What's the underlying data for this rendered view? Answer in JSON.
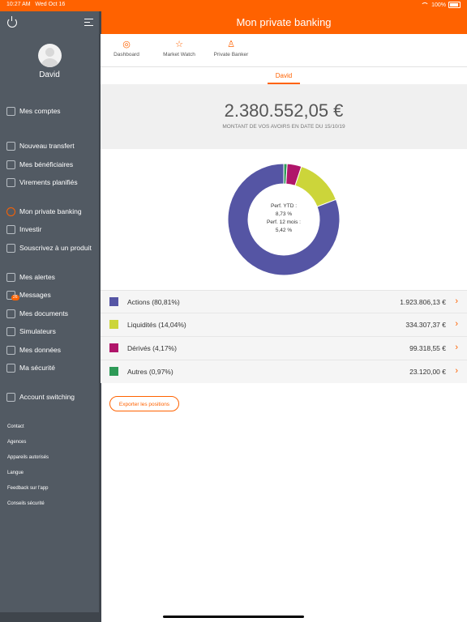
{
  "status": {
    "time": "10:27 AM",
    "date": "Wed Oct 16",
    "battery": "100%"
  },
  "app_title": "Mon private banking",
  "user": {
    "name": "David"
  },
  "sidebar": {
    "items": [
      {
        "label": "Mes comptes",
        "icon": "wallet-icon"
      },
      {
        "label": "Nouveau transfert",
        "icon": "transfer-icon"
      },
      {
        "label": "Mes bénéficiaires",
        "icon": "contacts-icon"
      },
      {
        "label": "Virements planifiés",
        "icon": "clock-icon"
      },
      {
        "label": "Mon private banking",
        "icon": "private-banking-icon"
      },
      {
        "label": "Investir",
        "icon": "trend-icon"
      },
      {
        "label": "Souscrivez à un produit",
        "icon": "grid-icon"
      },
      {
        "label": "Mes alertes",
        "icon": "bell-icon"
      },
      {
        "label": "Messages",
        "icon": "chat-icon",
        "badge": "26"
      },
      {
        "label": "Mes documents",
        "icon": "document-icon"
      },
      {
        "label": "Simulateurs",
        "icon": "wrench-icon"
      },
      {
        "label": "Mes données",
        "icon": "user-icon"
      },
      {
        "label": "Ma sécurité",
        "icon": "shield-icon"
      },
      {
        "label": "Account switching",
        "icon": "switch-icon"
      }
    ],
    "footer_links": [
      "Contact",
      "Agences",
      "Appareils autorisés",
      "Langue",
      "Feedback sur l'app",
      "Conseils sécurité"
    ]
  },
  "tabs": [
    {
      "label": "Dashboard",
      "icon": "dashboard-icon"
    },
    {
      "label": "Market Watch",
      "icon": "star-icon"
    },
    {
      "label": "Private Banker",
      "icon": "person-icon"
    }
  ],
  "subheader": {
    "label": "David"
  },
  "summary": {
    "amount": "2.380.552,05 €",
    "caption": "MONTANT DE VOS AVOIRS EN DATE DU 15/10/19"
  },
  "chart_center": {
    "line1": "Perf. YTD :",
    "line2": "8,73 %",
    "line3": "Perf. 12 mois :",
    "line4": "5,42 %"
  },
  "chart_data": {
    "type": "pie",
    "title": "",
    "categories": [
      "Actions",
      "Liquidités",
      "Dérivés",
      "Autres"
    ],
    "values": [
      80.81,
      14.04,
      4.17,
      0.97
    ],
    "colors": [
      "#5555a4",
      "#ccd53a",
      "#b0156a",
      "#2e9a57"
    ]
  },
  "assets": [
    {
      "name": "Actions (80,81%)",
      "value": "1.923.806,13 €",
      "color": "#5555a4"
    },
    {
      "name": "Liquidités (14,04%)",
      "value": "334.307,37 €",
      "color": "#ccd53a"
    },
    {
      "name": "Dérivés (4,17%)",
      "value": "99.318,55 €",
      "color": "#b0156a"
    },
    {
      "name": "Autres (0,97%)",
      "value": "23.120,00 €",
      "color": "#2e9a57"
    }
  ],
  "export_button": "Exporter les positions",
  "colors": {
    "accent": "#ff6200",
    "sidebar": "#525a63"
  }
}
